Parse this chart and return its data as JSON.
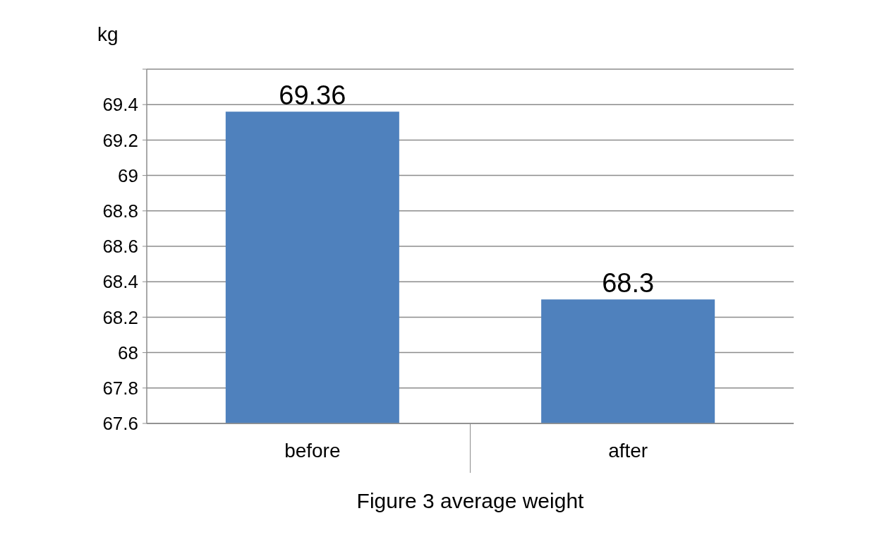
{
  "chart_data": {
    "type": "bar",
    "title": "Figure 3 average weight",
    "ylabel": "kg",
    "categories": [
      "before",
      "after"
    ],
    "values": [
      69.36,
      68.3
    ],
    "color": "#4f81bd",
    "ylim": [
      67.6,
      69.6
    ],
    "yticks": [
      67.6,
      67.8,
      68,
      68.2,
      68.4,
      68.6,
      68.8,
      69,
      69.2,
      69.4,
      {
        "value": 69.6,
        "label": null
      }
    ],
    "grid": "y",
    "data_labels": true
  }
}
